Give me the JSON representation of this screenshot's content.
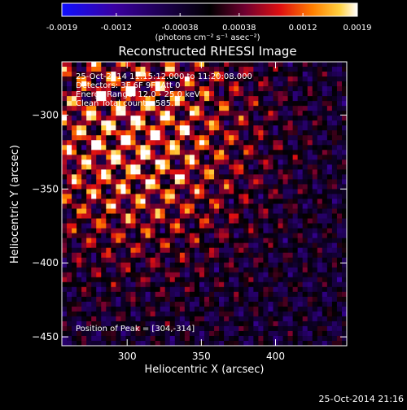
{
  "colorbar": {
    "tick_labels": [
      "-0.0019",
      "-0.0012",
      "-0.00038",
      "0.00038",
      "0.0012",
      "0.0019"
    ],
    "tick_values": [
      -0.0019,
      -0.0012,
      -0.00038,
      0.00038,
      0.0012,
      0.0019
    ],
    "units_label": "(photons cm⁻² s⁻¹ asec⁻²)",
    "colors": [
      "#1010ff",
      "#3a00a0",
      "#000000",
      "#700030",
      "#e01010",
      "#ff8000",
      "#ffd040",
      "#ffffff"
    ]
  },
  "chart_data": {
    "type": "heatmap",
    "title": "Reconstructed RHESSI Image",
    "xlabel": "Heliocentric X (arcsec)",
    "ylabel": "Heliocentric Y (arcsec)",
    "xlim": [
      256,
      448
    ],
    "ylim": [
      -456,
      -264
    ],
    "x_ticks": [
      300,
      350,
      400
    ],
    "y_ticks": [
      -300,
      -350,
      -400,
      -450
    ],
    "x_tick_labels": [
      "300",
      "350",
      "400"
    ],
    "y_tick_labels": [
      "−300",
      "−350",
      "−400",
      "−450"
    ],
    "value_range": [
      -0.0019,
      0.0019
    ],
    "annotations": [
      "25-Oct-2014 11:15:12.000 to 11:20:08.000",
      "Detectors: 3F 6F 9F, Att 0",
      "Energy Range: 12.0 - 25.0 keV",
      "Clean    Total counts: 585."
    ],
    "peak_label": "Position of Peak = [304,-314]",
    "peak_position": [
      304,
      -314
    ]
  },
  "footer": {
    "timestamp": "25-Oct-2014 21:16"
  }
}
